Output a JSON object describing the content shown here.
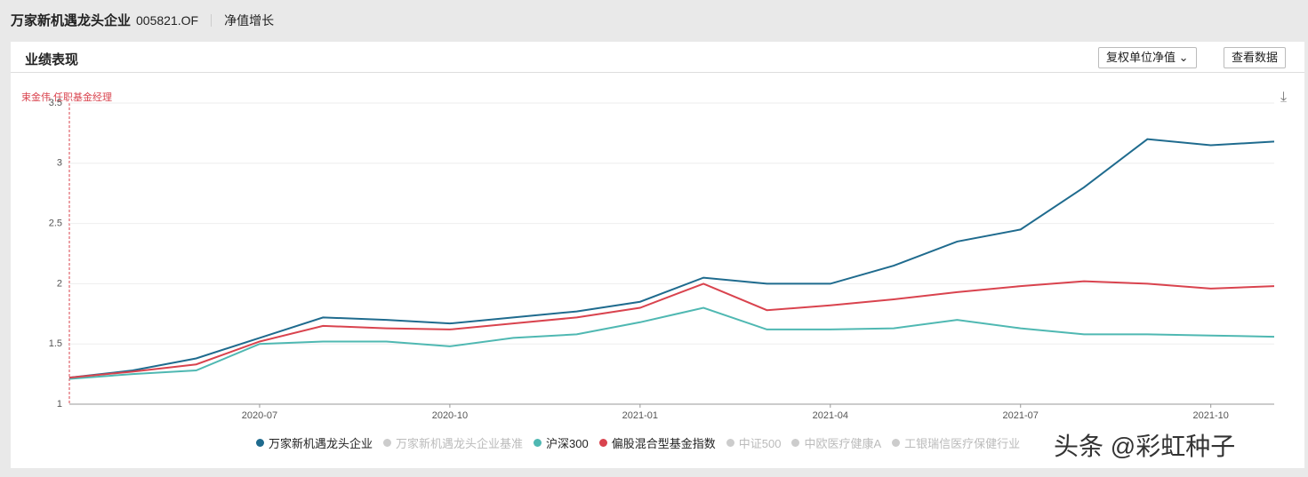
{
  "header": {
    "fund_name": "万家新机遇龙头企业",
    "fund_code": "005821.OF",
    "tab": "净值增长"
  },
  "panel": {
    "title": "业绩表现",
    "dropdown": "复权单位净值",
    "button": "查看数据"
  },
  "watermark": "头条 @彩虹种子",
  "hidden_series": [
    "万家新机遇龙头企业基准",
    "中证500",
    "中欧医疗健康A",
    "工银瑞信医疗保健行业"
  ],
  "chart_data": {
    "type": "line",
    "annotation": "束金伟 任职基金经理",
    "x": [
      "2020-04",
      "2020-05",
      "2020-06",
      "2020-07",
      "2020-08",
      "2020-09",
      "2020-10",
      "2020-11",
      "2020-12",
      "2021-01",
      "2021-02",
      "2021-03",
      "2021-04",
      "2021-05",
      "2021-06",
      "2021-07",
      "2021-08",
      "2021-09",
      "2021-10",
      "2021-11"
    ],
    "xlim": [
      "2020-04",
      "2021-11"
    ],
    "xticks": [
      "2020-07",
      "2020-10",
      "2021-01",
      "2021-04",
      "2021-07",
      "2021-10"
    ],
    "ylim": [
      1,
      3.5
    ],
    "yticks": [
      1,
      1.5,
      2,
      2.5,
      3,
      3.5
    ],
    "grid": true,
    "series": [
      {
        "name": "万家新机遇龙头企业",
        "color": "#1f6b8e",
        "values": [
          1.22,
          1.28,
          1.38,
          1.55,
          1.72,
          1.7,
          1.67,
          1.72,
          1.77,
          1.85,
          2.05,
          2.0,
          2.0,
          2.15,
          2.35,
          2.45,
          2.8,
          3.2,
          3.15,
          3.18
        ]
      },
      {
        "name": "沪深300",
        "color": "#4fb8b2",
        "values": [
          1.21,
          1.25,
          1.28,
          1.5,
          1.52,
          1.52,
          1.48,
          1.55,
          1.58,
          1.68,
          1.8,
          1.62,
          1.62,
          1.63,
          1.7,
          1.63,
          1.58,
          1.58,
          1.57,
          1.56
        ]
      },
      {
        "name": "偏股混合型基金指数",
        "color": "#d9434e",
        "values": [
          1.22,
          1.27,
          1.33,
          1.52,
          1.65,
          1.63,
          1.62,
          1.67,
          1.72,
          1.8,
          2.0,
          1.78,
          1.82,
          1.87,
          1.93,
          1.98,
          2.02,
          2.0,
          1.96,
          1.98
        ]
      }
    ]
  }
}
